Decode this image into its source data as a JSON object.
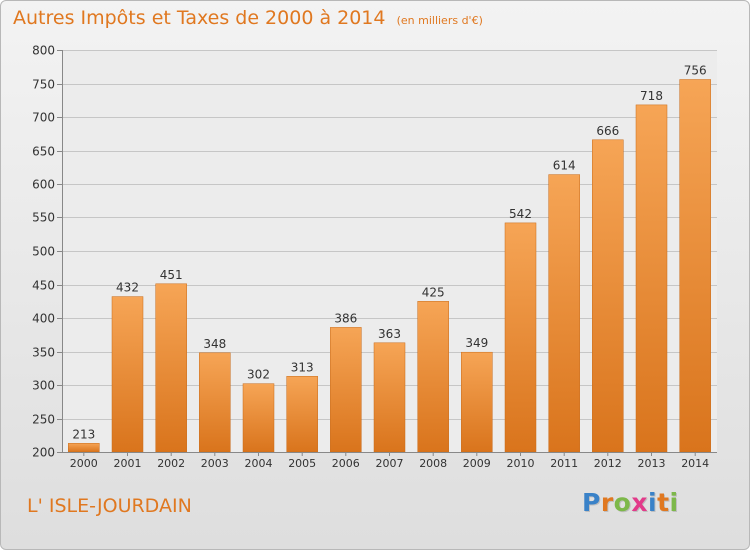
{
  "title": "Autres Impôts et Taxes de 2000 à 2014",
  "unit": "(en milliers d'€)",
  "commune": "L' ISLE-JOURDAIN",
  "logo": {
    "letters": [
      "P",
      "r",
      "o",
      "x",
      "i",
      "t",
      "i"
    ],
    "colors": [
      "#3a82c8",
      "#e07820",
      "#7db84a",
      "#e23b8a",
      "#3a82c8",
      "#e07820",
      "#7db84a"
    ]
  },
  "chart_data": {
    "type": "bar",
    "categories": [
      "2000",
      "2001",
      "2002",
      "2003",
      "2004",
      "2005",
      "2006",
      "2007",
      "2008",
      "2009",
      "2010",
      "2011",
      "2012",
      "2013",
      "2014"
    ],
    "values": [
      213,
      432,
      451,
      348,
      302,
      313,
      386,
      363,
      425,
      349,
      542,
      614,
      666,
      718,
      756
    ],
    "ylim": [
      200,
      800
    ],
    "yticks": [
      200,
      250,
      300,
      350,
      400,
      450,
      500,
      550,
      600,
      650,
      700,
      750,
      800
    ],
    "grid": true,
    "bar_color": "#f0923a",
    "title": "Autres Impôts et Taxes de 2000 à 2014",
    "xlabel": "",
    "ylabel": ""
  }
}
